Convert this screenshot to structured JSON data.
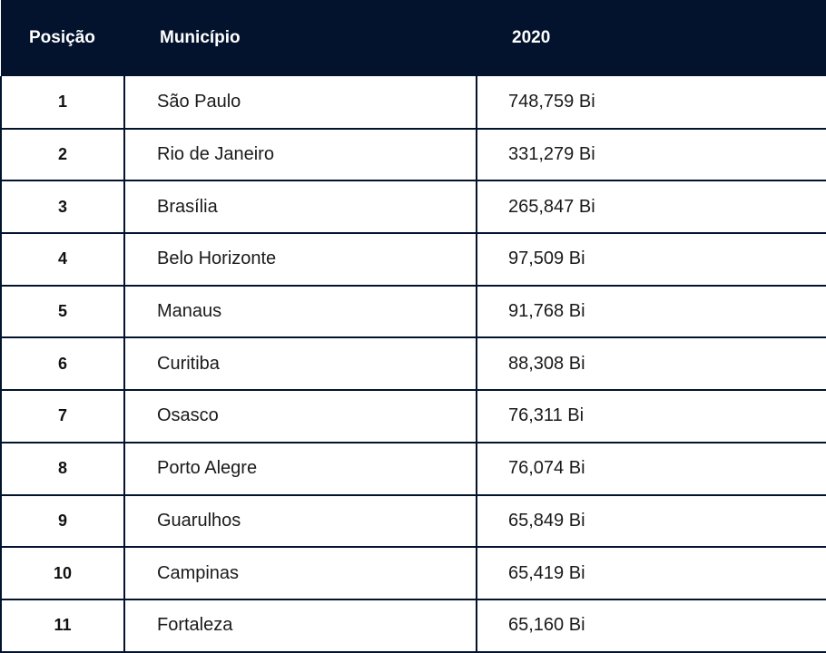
{
  "table": {
    "headers": {
      "position": "Posição",
      "municipality": "Município",
      "year": "2020"
    },
    "rows": [
      {
        "position": "1",
        "municipality": "São Paulo",
        "value": "748,759 Bi"
      },
      {
        "position": "2",
        "municipality": "Rio de Janeiro",
        "value": "331,279 Bi"
      },
      {
        "position": "3",
        "municipality": "Brasília",
        "value": "265,847 Bi"
      },
      {
        "position": "4",
        "municipality": "Belo Horizonte",
        "value": "97,509 Bi"
      },
      {
        "position": "5",
        "municipality": "Manaus",
        "value": "91,768 Bi"
      },
      {
        "position": "6",
        "municipality": "Curitiba",
        "value": "88,308 Bi"
      },
      {
        "position": "7",
        "municipality": "Osasco",
        "value": "76,311 Bi"
      },
      {
        "position": "8",
        "municipality": "Porto Alegre",
        "value": "76,074 Bi"
      },
      {
        "position": "9",
        "municipality": "Guarulhos",
        "value": "65,849 Bi"
      },
      {
        "position": "10",
        "municipality": "Campinas",
        "value": "65,419 Bi"
      },
      {
        "position": "11",
        "municipality": "Fortaleza",
        "value": "65,160 Bi"
      }
    ]
  },
  "colors": {
    "header_bg": "#03132e",
    "header_text": "#ffffff",
    "border": "#03132e",
    "cell_text": "#1a1a1a"
  }
}
